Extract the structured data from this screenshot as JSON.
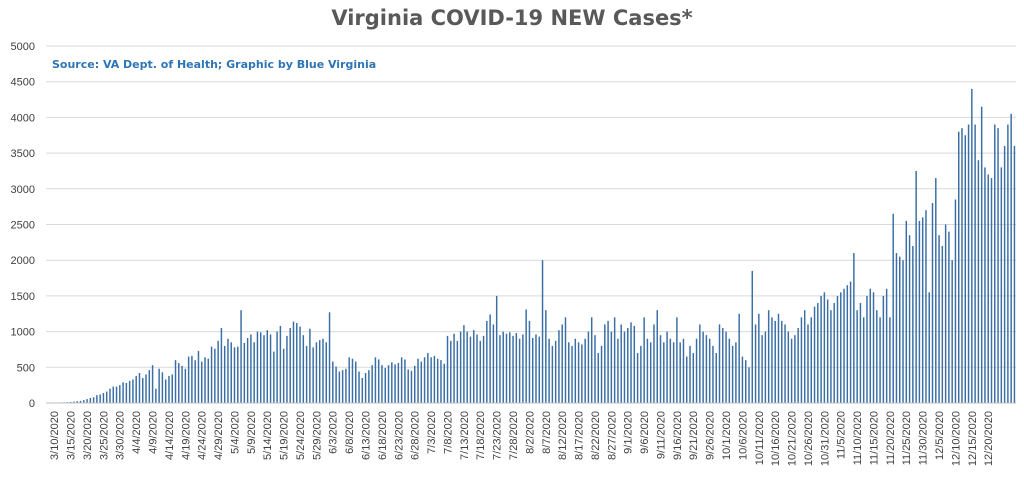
{
  "chart_data": {
    "type": "bar",
    "title": "Virginia COVID-19 NEW Cases*",
    "source": "Source: VA Dept. of Health; Graphic by Blue Virginia",
    "xlabel": "",
    "ylabel": "",
    "ylim": [
      0,
      5000
    ],
    "yticks": [
      0,
      500,
      1000,
      1500,
      2000,
      2500,
      3000,
      3500,
      4000,
      4500,
      5000
    ],
    "grid": true,
    "legend": "none",
    "bar_color": "#3a6ea5",
    "start_date": "2020-03-08",
    "x_tick_labels": [
      "3/10/2020",
      "3/15/2020",
      "3/20/2020",
      "3/25/2020",
      "3/30/2020",
      "4/4/2020",
      "4/9/2020",
      "4/14/2020",
      "4/19/2020",
      "4/24/2020",
      "4/29/2020",
      "5/4/2020",
      "5/9/2020",
      "5/14/2020",
      "5/19/2020",
      "5/24/2020",
      "5/29/2020",
      "6/3/2020",
      "6/8/2020",
      "6/13/2020",
      "6/18/2020",
      "6/23/2020",
      "6/28/2020",
      "7/3/2020",
      "7/8/2020",
      "7/13/2020",
      "7/18/2020",
      "7/23/2020",
      "7/28/2020",
      "8/2/2020",
      "8/7/2020",
      "8/12/2020",
      "8/17/2020",
      "8/22/2020",
      "8/27/2020",
      "9/1/2020",
      "9/6/2020",
      "9/11/2020",
      "9/16/2020",
      "9/21/2020",
      "9/26/2020",
      "10/1/2020",
      "10/6/2020",
      "10/11/2020",
      "10/16/2020",
      "10/21/2020",
      "10/26/2020",
      "10/31/2020",
      "11/5/2020",
      "11/10/2020",
      "11/15/2020",
      "11/20/2020",
      "11/25/2020",
      "11/30/2020",
      "12/5/2020",
      "12/10/2020",
      "12/15/2020",
      "12/20/2020"
    ],
    "values": [
      2,
      2,
      5,
      5,
      8,
      10,
      12,
      15,
      20,
      25,
      30,
      40,
      55,
      70,
      80,
      110,
      120,
      140,
      160,
      200,
      230,
      230,
      250,
      290,
      280,
      310,
      330,
      380,
      420,
      350,
      400,
      460,
      530,
      200,
      480,
      430,
      330,
      380,
      400,
      600,
      560,
      520,
      480,
      650,
      660,
      600,
      730,
      580,
      640,
      620,
      790,
      760,
      870,
      1050,
      800,
      900,
      850,
      780,
      790,
      1300,
      840,
      910,
      960,
      850,
      1000,
      990,
      950,
      1020,
      960,
      720,
      1000,
      1080,
      760,
      940,
      1050,
      1140,
      1120,
      1070,
      950,
      800,
      1040,
      780,
      850,
      880,
      900,
      850,
      1270,
      580,
      510,
      440,
      460,
      480,
      640,
      620,
      580,
      440,
      350,
      420,
      460,
      530,
      640,
      610,
      530,
      490,
      530,
      570,
      540,
      560,
      640,
      610,
      470,
      450,
      520,
      620,
      580,
      640,
      700,
      640,
      660,
      620,
      600,
      550,
      940,
      870,
      970,
      870,
      1000,
      1090,
      1000,
      930,
      1020,
      960,
      870,
      940,
      1150,
      1240,
      1100,
      1500,
      950,
      1000,
      970,
      990,
      940,
      980,
      900,
      960,
      1310,
      1150,
      910,
      960,
      930,
      2000,
      1300,
      900,
      800,
      870,
      1020,
      1100,
      1200,
      850,
      800,
      900,
      850,
      820,
      900,
      1000,
      1200,
      950,
      700,
      800,
      1100,
      1150,
      1000,
      1200,
      900,
      1100,
      1000,
      1050,
      1130,
      1080,
      700,
      800,
      1200,
      900,
      850,
      1100,
      1300,
      950,
      850,
      1000,
      900,
      850,
      1200,
      850,
      900,
      650,
      800,
      700,
      900,
      1100,
      1000,
      950,
      900,
      800,
      700,
      1100,
      1050,
      1000,
      900,
      800,
      850,
      1250,
      650,
      600,
      500,
      1850,
      1100,
      1250,
      950,
      1000,
      1300,
      1200,
      1150,
      1250,
      1150,
      1100,
      1000,
      900,
      950,
      1050,
      1200,
      1300,
      1100,
      1200,
      1350,
      1400,
      1500,
      1550,
      1450,
      1300,
      1400,
      1500,
      1550,
      1600,
      1650,
      1700,
      2100,
      1300,
      1400,
      1200,
      1500,
      1600,
      1550,
      1300,
      1200,
      1500,
      1600,
      1200,
      2650,
      2100,
      2050,
      2000,
      2550,
      2350,
      2200,
      3250,
      2550,
      2600,
      2700,
      1550,
      2800,
      3150,
      2350,
      2200,
      2500,
      2400,
      2000,
      2850,
      3800,
      3850,
      3750,
      3900,
      4400,
      3900,
      3400,
      4150,
      3300,
      3200,
      3150,
      3900,
      3850,
      3300,
      3600,
      3900,
      4050,
      3600
    ]
  }
}
